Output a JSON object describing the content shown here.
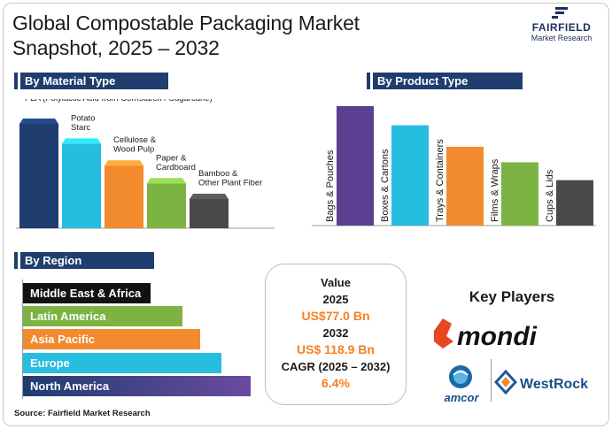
{
  "title_line1": "Global Compostable Packaging Market",
  "title_line2": "Snapshot, 2025 – 2032",
  "logo": {
    "name": "FAIRFIELD",
    "sub": "Market Research"
  },
  "sections": {
    "material": "By Material Type",
    "product": "By Product Type",
    "region": "By Region"
  },
  "colors": {
    "navy": "#1f3d6e",
    "purple": "#5c3d8f",
    "cyan": "#26bde0",
    "orange": "#f28a2e",
    "green": "#7cb342",
    "gray": "#4a4a4a",
    "black": "#111111",
    "accent": "#f58025"
  },
  "chart_data": [
    {
      "type": "bar",
      "title": "By Material Type",
      "categories": [
        "PLA (Polylactic Acid from Cornstarch / Sugarcane)",
        "Potato Starc",
        "Cellulose & Wood Pulp",
        "Paper & Cardboard",
        "Bamboo & Other Plant Fiber"
      ],
      "label_lines": [
        [
          "PLA (Polylactic Acid from Cornstarch / Sugarcane)"
        ],
        [
          "Potato",
          "Starc"
        ],
        [
          "Cellulose &",
          "Wood Pulp"
        ],
        [
          "Paper &",
          "Cardboard"
        ],
        [
          "Bamboo &",
          "Other Plant Fiber"
        ]
      ],
      "values": [
        100,
        81,
        60,
        43,
        28
      ],
      "colors": [
        "#1f3d6e",
        "#26bde0",
        "#f28a2e",
        "#7cb342",
        "#4a4a4a"
      ],
      "ylim": [
        0,
        100
      ]
    },
    {
      "type": "bar",
      "title": "By Product Type",
      "categories": [
        "Bags & Pouches",
        "Boxes & Cartons",
        "Trays & Containers",
        "Films & Wraps",
        "Cups & Lids"
      ],
      "values": [
        100,
        84,
        66,
        53,
        38
      ],
      "colors": [
        "#5c3d8f",
        "#26bde0",
        "#f28a2e",
        "#7cb342",
        "#4a4a4a"
      ],
      "ylim": [
        0,
        100
      ]
    },
    {
      "type": "bar",
      "orientation": "horizontal",
      "title": "By Region",
      "categories": [
        "Middle East & Africa",
        "Latin America",
        "Asia Pacific",
        "Europe",
        "North America"
      ],
      "values": [
        56,
        70,
        78,
        87,
        100
      ],
      "colors": [
        "#111111",
        "#7cb342",
        "#f28a2e",
        "#26bde0",
        "#1f3d6e"
      ],
      "xlim": [
        0,
        100
      ]
    }
  ],
  "value_box": {
    "label": "Value",
    "year1": "2025",
    "value1": "US$77.0 Bn",
    "year2": "2032",
    "value2": "US$ 118.9 Bn",
    "cagr_label": "CAGR (2025 – 2032)",
    "cagr_value": "6.4%"
  },
  "key_players": {
    "title": "Key Players",
    "mondi": "mondi",
    "amcor": "amcor",
    "westrock": "WestRock"
  },
  "source": "Source: Fairfield Market Research"
}
